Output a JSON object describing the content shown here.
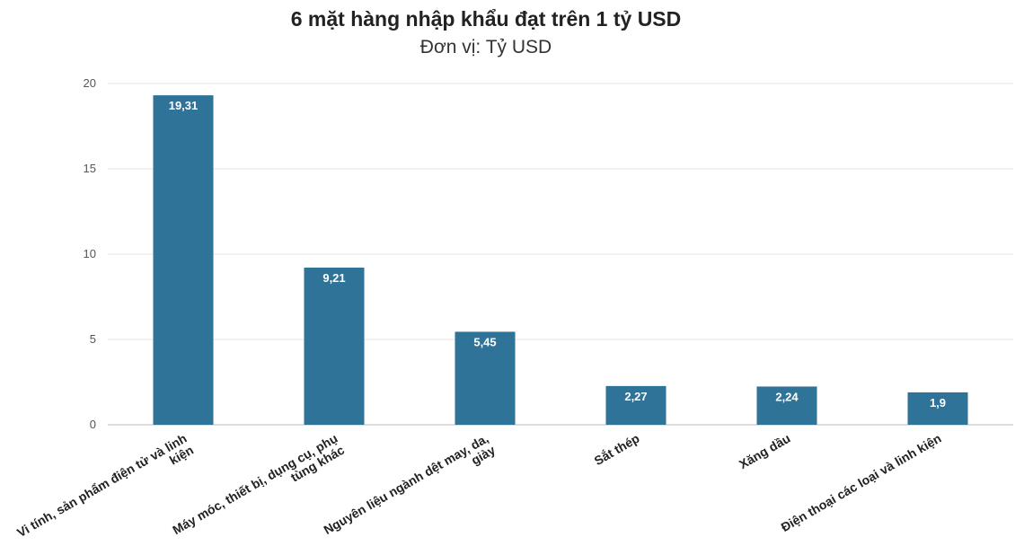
{
  "chart_data": {
    "type": "bar",
    "title": "6 mặt hàng nhập khẩu đạt trên 1 tỷ USD",
    "subtitle": "Đơn vị: Tỷ USD",
    "xlabel": "",
    "ylabel": "",
    "ylim": [
      0,
      20
    ],
    "yticks": [
      0,
      5,
      10,
      15,
      20
    ],
    "grid": true,
    "categories": [
      [
        "Vi tính, sản phẩm điện tử và linh",
        "kiện"
      ],
      [
        "Máy móc, thiết bị, dụng cụ, phụ",
        "tùng khác"
      ],
      [
        "Nguyên liệu ngành dệt may, da,",
        "giày"
      ],
      [
        "Sắt thép"
      ],
      [
        "Xăng dầu"
      ],
      [
        "Điện thoại các loại và linh kiện"
      ]
    ],
    "values": [
      19.31,
      9.21,
      5.45,
      2.27,
      2.24,
      1.9
    ],
    "value_labels": [
      "19,31",
      "9,21",
      "5,45",
      "2,27",
      "2,24",
      "1,9"
    ],
    "bar_color": "#2f7398"
  }
}
